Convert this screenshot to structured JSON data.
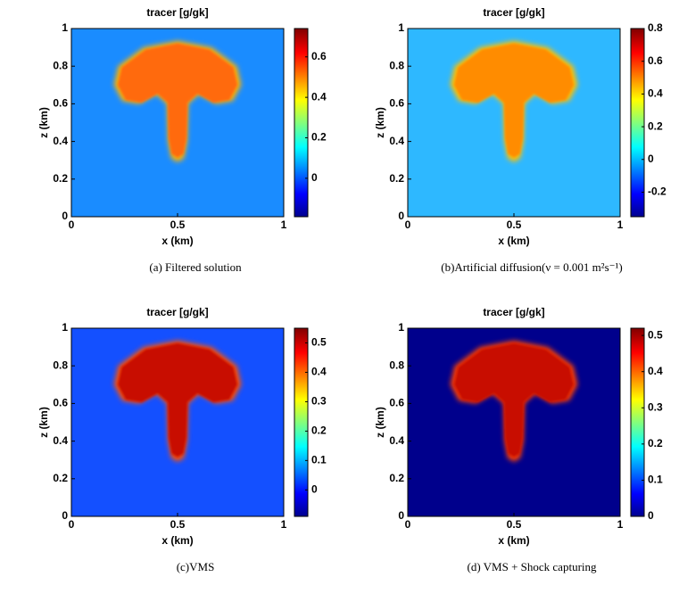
{
  "chart_data": [
    {
      "type": "heatmap",
      "title": "tracer [g/gk]",
      "xlabel": "x (km)",
      "ylabel": "z (km)",
      "caption": "(a)  Filtered solution",
      "xlim": [
        0,
        1
      ],
      "ylim": [
        0,
        1
      ],
      "xticks": [
        0,
        0.5,
        1
      ],
      "yticks": [
        0,
        0.2,
        0.4,
        0.6,
        0.8,
        1
      ],
      "clim": [
        -0.19,
        0.74
      ],
      "cticks": [
        0,
        0.2,
        0.4,
        0.6
      ],
      "field_colors": {
        "background": "#1a8cff",
        "halo": "#ffb000",
        "plume": "#ff6a10"
      }
    },
    {
      "type": "heatmap",
      "title": "tracer [g/gk]",
      "xlabel": "x (km)",
      "ylabel": "z (km)",
      "caption": "(b)Artificial diffusion(ν = 0.001 m²s⁻¹)",
      "xlim": [
        0,
        1
      ],
      "ylim": [
        0,
        1
      ],
      "xticks": [
        0,
        0.5,
        1
      ],
      "yticks": [
        0,
        0.2,
        0.4,
        0.6,
        0.8,
        1
      ],
      "clim": [
        -0.35,
        0.8
      ],
      "cticks": [
        -0.2,
        0,
        0.2,
        0.4,
        0.6,
        0.8
      ],
      "field_colors": {
        "background": "#2eb8ff",
        "halo": "#ffc000",
        "plume": "#ff8c00"
      }
    },
    {
      "type": "heatmap",
      "title": "tracer [g/gk]",
      "xlabel": "x (km)",
      "ylabel": "z (km)",
      "caption": "(c)VMS",
      "xlim": [
        0,
        1
      ],
      "ylim": [
        0,
        1
      ],
      "xticks": [
        0,
        0.5,
        1
      ],
      "yticks": [
        0,
        0.2,
        0.4,
        0.6,
        0.8,
        1
      ],
      "clim": [
        -0.09,
        0.55
      ],
      "cticks": [
        0,
        0.1,
        0.2,
        0.3,
        0.4,
        0.5
      ],
      "field_colors": {
        "background": "#1450ff",
        "halo": "#ff5000",
        "plume": "#c81000"
      }
    },
    {
      "type": "heatmap",
      "title": "tracer [g/gk]",
      "xlabel": "x (km)",
      "ylabel": "z (km)",
      "caption": "(d)  VMS + Shock capturing",
      "xlim": [
        0,
        1
      ],
      "ylim": [
        0,
        1
      ],
      "xticks": [
        0,
        0.5,
        1
      ],
      "yticks": [
        0,
        0.2,
        0.4,
        0.6,
        0.8,
        1
      ],
      "clim": [
        0,
        0.52
      ],
      "cticks": [
        0,
        0.1,
        0.2,
        0.3,
        0.4,
        0.5
      ],
      "field_colors": {
        "background": "#00008c",
        "halo": "#ff4000",
        "plume": "#c80a00"
      }
    }
  ]
}
